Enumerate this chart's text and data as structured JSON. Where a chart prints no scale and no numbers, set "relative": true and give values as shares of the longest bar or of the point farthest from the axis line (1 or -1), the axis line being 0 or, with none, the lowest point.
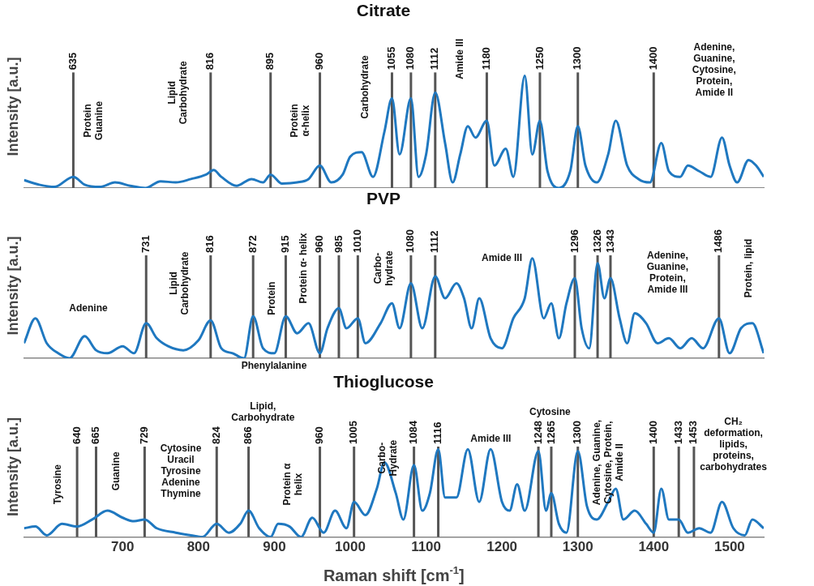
{
  "chart_data": [
    {
      "type": "line",
      "title": "Citrate",
      "ylabel": "Intensity [a.u.]",
      "relative": true,
      "xlim": [
        570,
        1545
      ],
      "xticks": [
        700,
        800,
        900,
        1000,
        1100,
        1200,
        1300,
        1400,
        1500
      ],
      "tick_labels": false,
      "series": [
        {
          "color": "#1f78c0",
          "x": [
            570,
            590,
            610,
            635,
            650,
            670,
            690,
            710,
            730,
            750,
            770,
            790,
            810,
            820,
            830,
            850,
            870,
            885,
            895,
            910,
            930,
            945,
            960,
            975,
            990,
            1000,
            1015,
            1030,
            1045,
            1055,
            1065,
            1080,
            1090,
            1100,
            1112,
            1125,
            1135,
            1145,
            1155,
            1165,
            1180,
            1190,
            1205,
            1215,
            1230,
            1240,
            1250,
            1260,
            1275,
            1290,
            1300,
            1310,
            1325,
            1340,
            1350,
            1365,
            1380,
            1395,
            1410,
            1420,
            1435,
            1445,
            1460,
            1475,
            1490,
            1500,
            1510,
            1525,
            1535,
            1545
          ],
          "values": [
            0.07,
            0.03,
            0.01,
            0.1,
            0.03,
            0.01,
            0.05,
            0.02,
            0.0,
            0.06,
            0.05,
            0.08,
            0.12,
            0.16,
            0.1,
            0.02,
            0.08,
            0.05,
            0.12,
            0.04,
            0.05,
            0.08,
            0.2,
            0.05,
            0.12,
            0.28,
            0.32,
            0.1,
            0.5,
            0.8,
            0.3,
            0.8,
            0.1,
            0.3,
            0.85,
            0.4,
            0.05,
            0.3,
            0.55,
            0.45,
            0.6,
            0.2,
            0.35,
            0.1,
            1.0,
            0.3,
            0.6,
            0.15,
            0.0,
            0.15,
            0.55,
            0.2,
            0.05,
            0.3,
            0.6,
            0.2,
            0.08,
            0.05,
            0.4,
            0.15,
            0.1,
            0.2,
            0.15,
            0.1,
            0.45,
            0.2,
            0.05,
            0.25,
            0.2,
            0.1
          ]
        }
      ],
      "ref_lines": [
        {
          "axis": "x",
          "value": 635,
          "label": "635"
        },
        {
          "axis": "x",
          "value": 816,
          "label": "816"
        },
        {
          "axis": "x",
          "value": 895,
          "label": "895"
        },
        {
          "axis": "x",
          "value": 960,
          "label": "960"
        },
        {
          "axis": "x",
          "value": 1055,
          "label": "1055"
        },
        {
          "axis": "x",
          "value": 1080,
          "label": "1080"
        },
        {
          "axis": "x",
          "value": 1112,
          "label": "1112"
        },
        {
          "axis": "x",
          "value": 1180,
          "label": "1180"
        },
        {
          "axis": "x",
          "value": 1250,
          "label": "1250"
        },
        {
          "axis": "x",
          "value": 1300,
          "label": "1300"
        },
        {
          "axis": "x",
          "value": 1400,
          "label": "1400"
        }
      ],
      "annotations": [
        "Protein\nGuanine",
        "Lipid\nCarbohydrate",
        "Protein\nα-helix",
        "Carbohydrate",
        "Amide III",
        "Adenine,\nGuanine,\nCytosine,\nProtein,\nAmide II"
      ]
    },
    {
      "type": "line",
      "title": "PVP",
      "ylabel": "Intensity [a.u.]",
      "relative": true,
      "xlim": [
        570,
        1545
      ],
      "xticks": [
        700,
        800,
        900,
        1000,
        1100,
        1200,
        1300,
        1400,
        1500
      ],
      "tick_labels": false,
      "series": [
        {
          "color": "#1f78c0",
          "x": [
            570,
            585,
            600,
            615,
            630,
            650,
            665,
            680,
            700,
            715,
            731,
            745,
            760,
            780,
            800,
            816,
            830,
            845,
            860,
            872,
            885,
            900,
            915,
            930,
            945,
            960,
            970,
            985,
            995,
            1010,
            1020,
            1040,
            1055,
            1065,
            1080,
            1095,
            1112,
            1125,
            1140,
            1150,
            1160,
            1170,
            1185,
            1200,
            1215,
            1230,
            1240,
            1255,
            1265,
            1275,
            1285,
            1296,
            1305,
            1315,
            1326,
            1335,
            1343,
            1355,
            1365,
            1375,
            1390,
            1405,
            1420,
            1435,
            1450,
            1465,
            1486,
            1500,
            1515,
            1530,
            1545
          ],
          "values": [
            0.15,
            0.4,
            0.15,
            0.05,
            0.0,
            0.22,
            0.08,
            0.05,
            0.12,
            0.05,
            0.35,
            0.2,
            0.12,
            0.08,
            0.18,
            0.38,
            0.1,
            0.05,
            0.0,
            0.42,
            0.1,
            0.05,
            0.42,
            0.25,
            0.35,
            0.05,
            0.3,
            0.5,
            0.3,
            0.4,
            0.15,
            0.35,
            0.55,
            0.3,
            0.75,
            0.3,
            0.82,
            0.6,
            0.75,
            0.6,
            0.3,
            0.6,
            0.2,
            0.1,
            0.4,
            0.6,
            1.0,
            0.4,
            0.55,
            0.2,
            0.55,
            0.8,
            0.3,
            0.1,
            0.95,
            0.6,
            0.8,
            0.4,
            0.15,
            0.45,
            0.35,
            0.15,
            0.2,
            0.1,
            0.2,
            0.1,
            0.4,
            0.05,
            0.3,
            0.35,
            0.05
          ]
        }
      ],
      "ref_lines": [
        {
          "axis": "x",
          "value": 731,
          "label": "731"
        },
        {
          "axis": "x",
          "value": 816,
          "label": "816"
        },
        {
          "axis": "x",
          "value": 872,
          "label": "872"
        },
        {
          "axis": "x",
          "value": 915,
          "label": "915"
        },
        {
          "axis": "x",
          "value": 960,
          "label": "960"
        },
        {
          "axis": "x",
          "value": 985,
          "label": "985"
        },
        {
          "axis": "x",
          "value": 1010,
          "label": "1010"
        },
        {
          "axis": "x",
          "value": 1080,
          "label": "1080"
        },
        {
          "axis": "x",
          "value": 1112,
          "label": "1112"
        },
        {
          "axis": "x",
          "value": 1296,
          "label": "1296"
        },
        {
          "axis": "x",
          "value": 1326,
          "label": "1326"
        },
        {
          "axis": "x",
          "value": 1343,
          "label": "1343"
        },
        {
          "axis": "x",
          "value": 1486,
          "label": "1486"
        }
      ],
      "annotations": [
        "Adenine",
        "Lipid\nCarbohydrate",
        "Protein",
        "Protein α- helix",
        "Phenylalanine",
        "Carbo-\nhydrate",
        "Amide III",
        "Adenine,\nGuanine,\nProtein,\nAmide III",
        "Protein, lipid"
      ]
    },
    {
      "type": "line",
      "title": "Thioglucose",
      "ylabel": "Intensity [a.u.]",
      "xlabel": "Raman shift [cm$^{-1}$]",
      "relative": true,
      "xlim": [
        570,
        1545
      ],
      "xticks": [
        700,
        800,
        900,
        1000,
        1100,
        1200,
        1300,
        1400,
        1500
      ],
      "series": [
        {
          "color": "#1f78c0",
          "x": [
            570,
            585,
            600,
            620,
            640,
            660,
            680,
            700,
            715,
            729,
            745,
            770,
            790,
            805,
            824,
            840,
            855,
            866,
            880,
            895,
            905,
            920,
            935,
            950,
            965,
            980,
            995,
            1005,
            1020,
            1035,
            1045,
            1060,
            1070,
            1084,
            1095,
            1105,
            1116,
            1125,
            1140,
            1155,
            1170,
            1185,
            1200,
            1210,
            1220,
            1230,
            1248,
            1258,
            1265,
            1275,
            1285,
            1300,
            1312,
            1325,
            1340,
            1350,
            1360,
            1375,
            1390,
            1400,
            1410,
            1420,
            1433,
            1445,
            1460,
            1475,
            1490,
            1505,
            1520,
            1530,
            1545
          ],
          "values": [
            0.1,
            0.12,
            0.02,
            0.15,
            0.12,
            0.2,
            0.3,
            0.22,
            0.18,
            0.2,
            0.1,
            0.05,
            0.02,
            0.0,
            0.15,
            0.05,
            0.15,
            0.3,
            0.1,
            0.0,
            0.15,
            0.12,
            0.0,
            0.22,
            0.05,
            0.3,
            0.1,
            0.4,
            0.25,
            0.55,
            0.85,
            0.5,
            0.2,
            0.82,
            0.3,
            0.5,
            1.0,
            0.45,
            0.45,
            1.0,
            0.4,
            1.0,
            0.4,
            0.3,
            0.6,
            0.3,
            0.98,
            0.3,
            0.5,
            0.15,
            0.05,
            0.98,
            0.35,
            0.2,
            0.4,
            0.55,
            0.2,
            0.3,
            0.15,
            0.05,
            0.55,
            0.2,
            0.2,
            0.05,
            0.1,
            0.05,
            0.4,
            0.1,
            0.02,
            0.2,
            0.1
          ]
        }
      ],
      "ref_lines": [
        {
          "axis": "x",
          "value": 640,
          "label": "640"
        },
        {
          "axis": "x",
          "value": 665,
          "label": "665"
        },
        {
          "axis": "x",
          "value": 729,
          "label": "729"
        },
        {
          "axis": "x",
          "value": 824,
          "label": "824"
        },
        {
          "axis": "x",
          "value": 866,
          "label": "866"
        },
        {
          "axis": "x",
          "value": 960,
          "label": "960"
        },
        {
          "axis": "x",
          "value": 1005,
          "label": "1005"
        },
        {
          "axis": "x",
          "value": 1084,
          "label": "1084"
        },
        {
          "axis": "x",
          "value": 1116,
          "label": "1116"
        },
        {
          "axis": "x",
          "value": 1248,
          "label": "1248"
        },
        {
          "axis": "x",
          "value": 1265,
          "label": "1265"
        },
        {
          "axis": "x",
          "value": 1300,
          "label": "1300"
        },
        {
          "axis": "x",
          "value": 1400,
          "label": "1400"
        },
        {
          "axis": "x",
          "value": 1433,
          "label": "1433"
        },
        {
          "axis": "x",
          "value": 1453,
          "label": "1453"
        }
      ],
      "annotations": [
        "Tyrosine",
        "Guanine",
        "Cytosine\nUracil\nTyrosine\nAdenine\nThymine",
        "Lipid,\nCarbohydrate",
        "Protein α\nhelix",
        "Carbo-\nHydrate",
        "Amide III",
        "Cytosine",
        "Adenine, Guanine,\nCytosine, Protein,\nAmide II",
        "CH₂\ndeformation,\nlipids,\nproteins,\ncarbohydrates"
      ]
    }
  ]
}
